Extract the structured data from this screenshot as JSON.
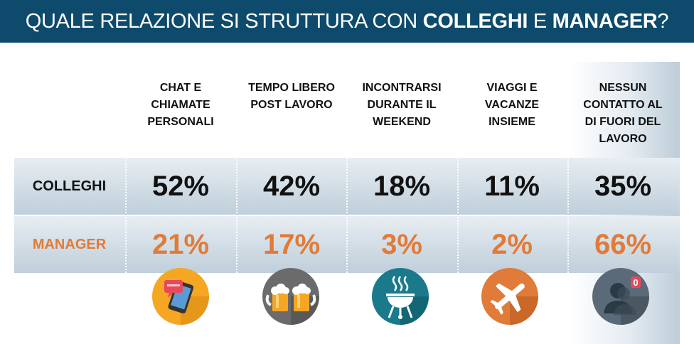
{
  "title": {
    "part1": "QUALE RELAZIONE SI STRUTTURA CON ",
    "bold1": "COLLEGHI",
    "part2": " E ",
    "bold2": "MANAGER",
    "part3": "?"
  },
  "colors": {
    "title_bg": "#0d4a6b",
    "colleghi": "#111111",
    "manager": "#e07b39",
    "icon_chat": "#f5a623",
    "icon_beer": "#6b6b6b",
    "icon_bbq": "#1a7a8c",
    "icon_plane": "#e07b39",
    "icon_contact": "#5a6a78"
  },
  "chart_data": {
    "type": "table",
    "title": "QUALE RELAZIONE SI STRUTTURA CON COLLEGHI E MANAGER?",
    "categories": [
      [
        "CHAT E",
        "CHIAMATE",
        "PERSONALI"
      ],
      [
        "TEMPO LIBERO",
        "POST LAVORO"
      ],
      [
        "INCONTRARSI",
        "DURANTE IL",
        "WEEKEND"
      ],
      [
        "VIAGGI E",
        "VACANZE",
        "INSIEME"
      ],
      [
        "NESSUN",
        "CONTATTO AL",
        "DI FUORI DEL",
        "LAVORO"
      ]
    ],
    "series": [
      {
        "name": "COLLEGHI",
        "values": [
          52,
          42,
          18,
          11,
          35
        ],
        "labels": [
          "52%",
          "42%",
          "18%",
          "11%",
          "35%"
        ]
      },
      {
        "name": "MANAGER",
        "values": [
          21,
          17,
          3,
          2,
          66
        ],
        "labels": [
          "21%",
          "17%",
          "3%",
          "2%",
          "66%"
        ]
      }
    ],
    "unit": "%",
    "highlighted_category": 4
  },
  "icons": [
    "chat-phone-icon",
    "beer-mugs-icon",
    "barbecue-grill-icon",
    "airplane-icon",
    "no-contact-person-icon"
  ],
  "notification_badge": "0"
}
